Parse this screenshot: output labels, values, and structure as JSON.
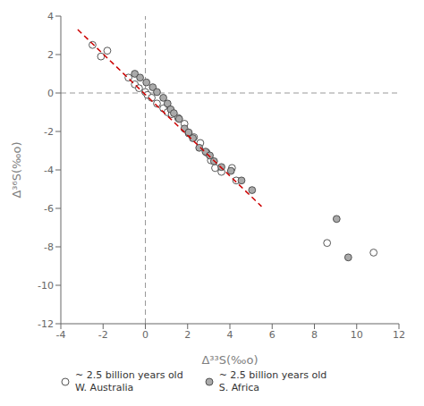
{
  "chart_data": {
    "type": "scatter",
    "x_label": "Δ³³S(‰o)",
    "y_label": "Δ³⁶S(‰o)",
    "xlim": [
      -4,
      12
    ],
    "ylim": [
      -12,
      4
    ],
    "xticks": [
      -4,
      -2,
      0,
      2,
      4,
      6,
      8,
      10,
      12
    ],
    "yticks": [
      -12,
      -10,
      -8,
      -6,
      -4,
      -2,
      0,
      2,
      4
    ],
    "legend": "lower left",
    "series": [
      {
        "name": "~ 2.5 billion years old\nW. Australia",
        "type": "scatter",
        "color": "#ffffff",
        "marker": "circle",
        "x": [
          -2.5,
          -2.1,
          -1.8,
          -0.8,
          -0.5,
          -0.3,
          0.0,
          0.1,
          0.3,
          0.55,
          0.85,
          1.05,
          1.25,
          1.55,
          1.85,
          2.05,
          2.3,
          2.6,
          2.9,
          3.1,
          3.3,
          3.6,
          4.1,
          4.3,
          8.6,
          10.8
        ],
        "values": [
          2.5,
          1.9,
          2.2,
          0.8,
          0.45,
          0.25,
          0.05,
          -0.1,
          -0.25,
          -0.55,
          -0.8,
          -1.0,
          -1.1,
          -1.3,
          -1.6,
          -2.1,
          -2.3,
          -2.6,
          -3.1,
          -3.5,
          -3.9,
          -4.1,
          -3.9,
          -4.55,
          -7.8,
          -8.3
        ]
      },
      {
        "name": "~ 2.5 billion years old\nS. Africa",
        "type": "scatter",
        "color": "#aaaaaa",
        "marker": "circle",
        "x": [
          -0.5,
          -0.25,
          0.05,
          0.35,
          0.55,
          0.85,
          1.05,
          1.2,
          1.35,
          1.6,
          1.85,
          2.05,
          2.25,
          2.55,
          2.85,
          3.05,
          3.25,
          3.6,
          4.05,
          4.55,
          5.05,
          9.05,
          9.6
        ],
        "values": [
          1.0,
          0.8,
          0.55,
          0.3,
          0.05,
          -0.25,
          -0.55,
          -0.85,
          -1.05,
          -1.35,
          -1.85,
          -2.05,
          -2.35,
          -2.85,
          -3.05,
          -3.25,
          -3.55,
          -3.85,
          -4.05,
          -4.55,
          -5.05,
          -6.55,
          -8.55
        ]
      },
      {
        "type": "line",
        "color": "#cc0000",
        "line_style": "dashed",
        "x": [
          -3.2,
          5.5
        ],
        "values": [
          3.3,
          -5.9
        ]
      }
    ],
    "annotations": [
      {
        "type": "line",
        "x": 0,
        "color": "#999999",
        "line_style": "dashed"
      },
      {
        "type": "line",
        "y": 0,
        "color": "#999999",
        "line_style": "dashed"
      }
    ]
  }
}
